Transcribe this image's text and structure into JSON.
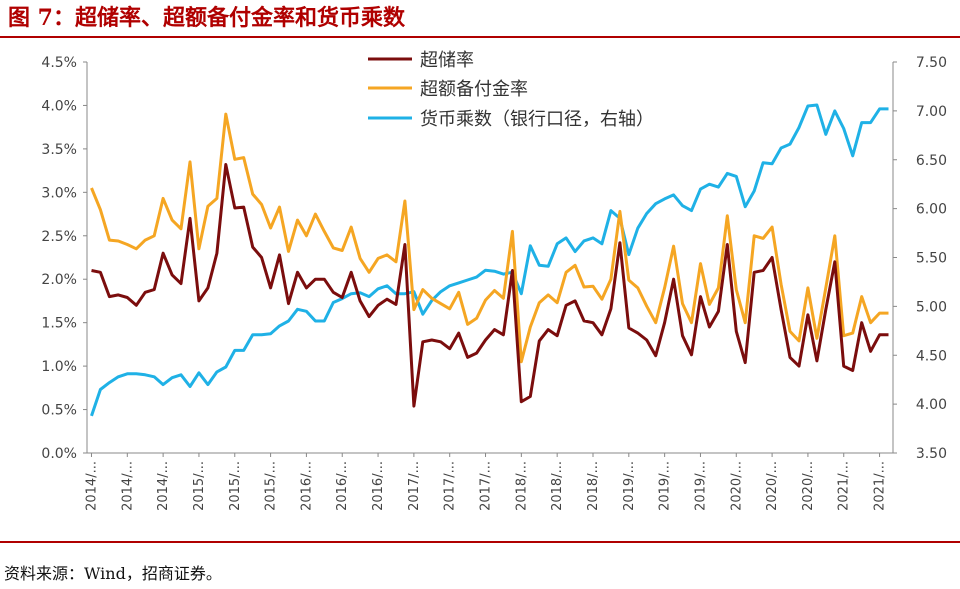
{
  "header": {
    "title": "图 7：超储率、超额备付金率和货币乘数"
  },
  "footer": {
    "source": "资料来源：Wind，招商证券。"
  },
  "chart_data": {
    "type": "line",
    "x": [
      "2014/01",
      "2014/02",
      "2014/03",
      "2014/04",
      "2014/05",
      "2014/06",
      "2014/07",
      "2014/08",
      "2014/09",
      "2014/10",
      "2014/11",
      "2014/12",
      "2015/01",
      "2015/02",
      "2015/03",
      "2015/04",
      "2015/05",
      "2015/06",
      "2015/07",
      "2015/08",
      "2015/09",
      "2015/10",
      "2015/11",
      "2015/12",
      "2016/01",
      "2016/02",
      "2016/03",
      "2016/04",
      "2016/05",
      "2016/06",
      "2016/07",
      "2016/08",
      "2016/09",
      "2016/10",
      "2016/11",
      "2016/12",
      "2017/01",
      "2017/02",
      "2017/03",
      "2017/04",
      "2017/05",
      "2017/06",
      "2017/07",
      "2017/08",
      "2017/09",
      "2017/10",
      "2017/11",
      "2017/12",
      "2018/01",
      "2018/02",
      "2018/03",
      "2018/04",
      "2018/05",
      "2018/06",
      "2018/07",
      "2018/08",
      "2018/09",
      "2018/10",
      "2018/11",
      "2018/12",
      "2019/01",
      "2019/02",
      "2019/03",
      "2019/04",
      "2019/05",
      "2019/06",
      "2019/07",
      "2019/08",
      "2019/09",
      "2019/10",
      "2019/11",
      "2019/12",
      "2020/01",
      "2020/02",
      "2020/03",
      "2020/04",
      "2020/05",
      "2020/06",
      "2020/07",
      "2020/08",
      "2020/09",
      "2020/10",
      "2020/11",
      "2020/12",
      "2021/01",
      "2021/02",
      "2021/03",
      "2021/04",
      "2021/05",
      "2021/06"
    ],
    "x_tick_labels": [
      "2014/...",
      "2014/...",
      "2014/...",
      "2015/...",
      "2015/...",
      "2015/...",
      "2016/...",
      "2016/...",
      "2016/...",
      "2017/...",
      "2017/...",
      "2017/...",
      "2018/...",
      "2018/...",
      "2018/...",
      "2019/...",
      "2019/...",
      "2019/...",
      "2020/...",
      "2020/...",
      "2020/...",
      "2021/...",
      "2021/..."
    ],
    "y_left_ticks": [
      "0.0%",
      "0.5%",
      "1.0%",
      "1.5%",
      "2.0%",
      "2.5%",
      "3.0%",
      "3.5%",
      "4.0%",
      "4.5%"
    ],
    "y_right_ticks": [
      "3.50",
      "4.00",
      "4.50",
      "5.00",
      "5.50",
      "6.00",
      "6.50",
      "7.00",
      "7.50"
    ],
    "ylim_left": [
      0,
      4.5
    ],
    "ylim_right": [
      3.5,
      7.5
    ],
    "grid": false,
    "legend_position": "top-center",
    "series": [
      {
        "name": "超储率",
        "axis": "left",
        "color": "#7b0d0d",
        "values": [
          2.1,
          2.08,
          1.8,
          1.82,
          1.79,
          1.7,
          1.85,
          1.88,
          2.3,
          2.05,
          1.95,
          2.7,
          1.75,
          1.9,
          2.3,
          3.32,
          2.82,
          2.83,
          2.37,
          2.25,
          1.9,
          2.28,
          1.72,
          2.08,
          1.9,
          2.0,
          2.0,
          1.85,
          1.79,
          2.08,
          1.75,
          1.57,
          1.7,
          1.77,
          1.71,
          2.4,
          0.54,
          1.28,
          1.3,
          1.28,
          1.2,
          1.38,
          1.1,
          1.15,
          1.3,
          1.42,
          1.36,
          2.1,
          0.59,
          0.65,
          1.29,
          1.42,
          1.35,
          1.7,
          1.75,
          1.52,
          1.5,
          1.36,
          1.66,
          2.42,
          1.44,
          1.38,
          1.3,
          1.12,
          1.5,
          2.0,
          1.35,
          1.13,
          1.8,
          1.45,
          1.63,
          2.4,
          1.4,
          1.04,
          2.08,
          2.1,
          2.25,
          1.65,
          1.1,
          1.0,
          1.59,
          1.06,
          1.65,
          2.2,
          1.0,
          0.95,
          1.5,
          1.17,
          1.36,
          1.36
        ]
      },
      {
        "name": "超额备付金率",
        "axis": "left",
        "color": "#f5a623",
        "values": [
          3.05,
          2.8,
          2.45,
          2.44,
          2.4,
          2.35,
          2.45,
          2.5,
          2.93,
          2.68,
          2.58,
          3.35,
          2.35,
          2.84,
          2.93,
          3.9,
          3.38,
          3.4,
          2.98,
          2.86,
          2.59,
          2.83,
          2.32,
          2.68,
          2.5,
          2.75,
          2.55,
          2.36,
          2.33,
          2.6,
          2.24,
          2.08,
          2.24,
          2.28,
          2.2,
          2.9,
          1.65,
          1.88,
          1.78,
          1.72,
          1.66,
          1.85,
          1.48,
          1.55,
          1.76,
          1.87,
          1.78,
          2.55,
          1.05,
          1.45,
          1.73,
          1.82,
          1.73,
          2.08,
          2.16,
          1.91,
          1.92,
          1.77,
          2.0,
          2.78,
          1.99,
          1.9,
          1.69,
          1.5,
          1.9,
          2.38,
          1.72,
          1.5,
          2.18,
          1.71,
          1.9,
          2.73,
          1.88,
          1.5,
          2.5,
          2.47,
          2.6,
          1.94,
          1.4,
          1.29,
          1.9,
          1.32,
          1.9,
          2.5,
          1.35,
          1.38,
          1.8,
          1.5,
          1.61,
          1.61
        ]
      },
      {
        "name": "货币乘数（银行口径，右轴）",
        "axis": "right",
        "color": "#1fb1e6",
        "values": [
          3.88,
          4.15,
          4.22,
          4.28,
          4.31,
          4.31,
          4.3,
          4.28,
          4.2,
          4.27,
          4.3,
          4.18,
          4.32,
          4.2,
          4.33,
          4.38,
          4.55,
          4.55,
          4.71,
          4.71,
          4.72,
          4.8,
          4.85,
          4.97,
          4.95,
          4.85,
          4.85,
          5.04,
          5.08,
          5.13,
          5.14,
          5.1,
          5.18,
          5.21,
          5.13,
          5.13,
          5.15,
          4.92,
          5.06,
          5.15,
          5.21,
          5.24,
          5.27,
          5.3,
          5.37,
          5.36,
          5.33,
          5.35,
          5.13,
          5.62,
          5.42,
          5.41,
          5.64,
          5.7,
          5.56,
          5.67,
          5.7,
          5.64,
          5.98,
          5.9,
          5.53,
          5.8,
          5.95,
          6.05,
          6.1,
          6.14,
          6.03,
          5.98,
          6.2,
          6.25,
          6.22,
          6.36,
          6.33,
          6.02,
          6.18,
          6.47,
          6.46,
          6.62,
          6.66,
          6.83,
          7.05,
          7.06,
          6.76,
          7.0,
          6.82,
          6.54,
          6.88,
          6.88,
          7.02,
          7.02
        ]
      }
    ]
  }
}
